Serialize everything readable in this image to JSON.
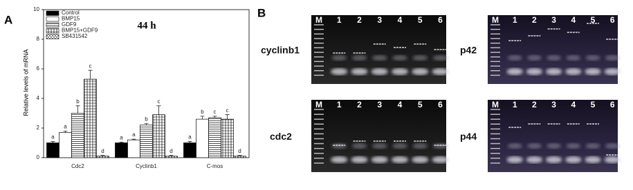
{
  "chart_data": {
    "type": "bar",
    "annotation": "44 h",
    "y_label": "Relative levels of mRNA",
    "categories": [
      "Cdc2",
      "Cyclinb1",
      "C-mos"
    ],
    "ylim": [
      0,
      10
    ],
    "yticks": [
      0,
      2,
      4,
      6,
      8,
      10
    ],
    "series": [
      {
        "name": "Control",
        "color": "#000000",
        "pattern": "solid",
        "values": [
          1,
          1,
          1
        ],
        "errors": [
          0.1,
          0.05,
          0.1
        ],
        "letters": [
          "a",
          "a",
          "a"
        ]
      },
      {
        "name": "BMP15",
        "color": "#ffffff",
        "pattern": "solid",
        "values": [
          1.7,
          1.2,
          2.6
        ],
        "errors": [
          0.1,
          0.05,
          0.2
        ],
        "letters": [
          "a",
          "a",
          "b"
        ]
      },
      {
        "name": "GDF9",
        "color": "#ffffff",
        "pattern": "horizontal",
        "values": [
          3.0,
          2.2,
          2.7
        ],
        "errors": [
          0.5,
          0.1,
          0.1
        ],
        "letters": [
          "b",
          "b",
          "c"
        ]
      },
      {
        "name": "BMP15+GDF9",
        "color": "#ffffff",
        "pattern": "vertical",
        "values": [
          5.3,
          2.9,
          2.6
        ],
        "errors": [
          0.6,
          0.6,
          0.3
        ],
        "letters": [
          "c",
          "c",
          "c"
        ]
      },
      {
        "name": "SB431542",
        "color": "#ffffff",
        "pattern": "diagonal",
        "values": [
          0.1,
          0.1,
          0.1
        ],
        "errors": [
          0.05,
          0.05,
          0.05
        ],
        "letters": [
          "d",
          "d",
          "d"
        ]
      }
    ]
  },
  "panel_labels": [
    "A",
    "B"
  ],
  "lanes": [
    "M",
    "1",
    "2",
    "3",
    "4",
    "5",
    "6"
  ],
  "gels": [
    "cyclinb1",
    "p42",
    "cdc2",
    "p44"
  ]
}
